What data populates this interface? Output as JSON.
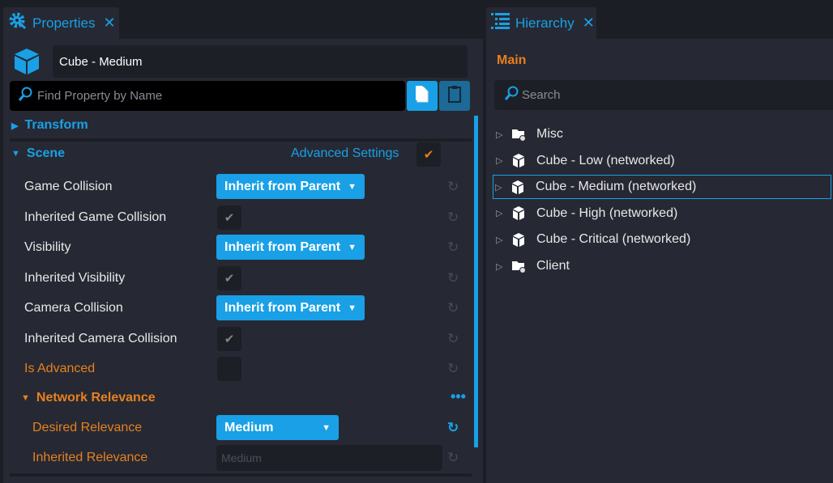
{
  "properties": {
    "tab_label": "Properties",
    "object_name": "Cube - Medium",
    "search_placeholder": "Find Property by Name",
    "sections": {
      "transform": "Transform",
      "scene": "Scene",
      "advanced_settings": "Advanced Settings",
      "network_relevance": "Network Relevance"
    },
    "rows": [
      {
        "label": "Game Collision",
        "value": "Inherit from Parent"
      },
      {
        "label": "Inherited Game Collision",
        "checked": true
      },
      {
        "label": "Visibility",
        "value": "Inherit from Parent"
      },
      {
        "label": "Inherited Visibility",
        "checked": true
      },
      {
        "label": "Camera Collision",
        "value": "Inherit from Parent"
      },
      {
        "label": "Inherited Camera Collision",
        "checked": true
      },
      {
        "label": "Is Advanced",
        "checked": false
      },
      {
        "label": "Desired Relevance",
        "value": "Medium"
      },
      {
        "label": "Inherited Relevance",
        "value": "Medium"
      }
    ]
  },
  "hierarchy": {
    "tab_label": "Hierarchy",
    "title": "Main",
    "search_placeholder": "Search",
    "items": [
      {
        "label": "Misc",
        "icon": "folder-icon"
      },
      {
        "label": "Cube - Low (networked)",
        "icon": "cube-icon"
      },
      {
        "label": "Cube - Medium (networked)",
        "icon": "cube-icon",
        "selected": true
      },
      {
        "label": "Cube - High (networked)",
        "icon": "cube-icon"
      },
      {
        "label": "Cube - Critical (networked)",
        "icon": "cube-icon"
      },
      {
        "label": "Client",
        "icon": "folder-icon"
      }
    ]
  },
  "colors": {
    "accent": "#19a0e6",
    "orange": "#e8801e",
    "panel": "#262933"
  }
}
